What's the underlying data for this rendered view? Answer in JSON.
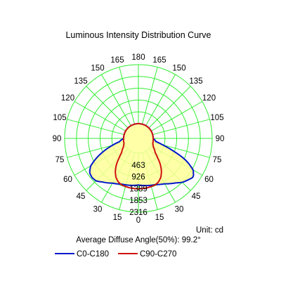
{
  "chart_data": {
    "type": "polar",
    "title": "Luminous Intensity Distribution Curve",
    "angle_labels_left": [
      "0",
      "15",
      "30",
      "45",
      "60",
      "75",
      "90",
      "105",
      "120",
      "135",
      "150",
      "165",
      "180"
    ],
    "angle_labels_right": [
      "15",
      "30",
      "45",
      "60",
      "75",
      "90",
      "105",
      "120",
      "135",
      "150",
      "165"
    ],
    "radial_ticks": [
      463,
      926,
      1389,
      1853,
      2316
    ],
    "radial_labels": [
      "463",
      "926",
      "1389",
      "1853",
      "2316"
    ],
    "rmax": 2316,
    "grid": true,
    "grid_color": "#33ee33",
    "unit_text": "Unit: cd",
    "note": "Average Diffuse Angle(50%): 99.2°",
    "legend_position": "bottom",
    "series": [
      {
        "name": "C0-C180",
        "color": "#0018c8",
        "fill": "#ffff99",
        "angles": [
          0,
          10,
          20,
          30,
          40,
          45,
          50,
          55,
          60,
          65,
          70,
          75,
          80,
          90,
          100,
          180
        ],
        "left_values": [
          1250,
          1290,
          1330,
          1450,
          1650,
          1780,
          1800,
          1760,
          1580,
          1230,
          850,
          480,
          180,
          0,
          0,
          0
        ],
        "right_values": [
          1250,
          1300,
          1350,
          1480,
          1700,
          1860,
          1960,
          2060,
          1900,
          1500,
          900,
          400,
          120,
          0,
          0,
          0
        ]
      },
      {
        "name": "C90-C270",
        "color": "#d01010",
        "fill": "none",
        "angles": [
          0,
          10,
          20,
          25,
          30,
          35,
          40,
          45,
          50,
          60,
          70,
          90,
          180
        ],
        "left_values": [
          1400,
          1390,
          1360,
          1300,
          1180,
          1000,
          760,
          480,
          280,
          100,
          20,
          0,
          0
        ],
        "right_values": [
          1400,
          1390,
          1360,
          1300,
          1180,
          1000,
          760,
          480,
          280,
          100,
          20,
          0,
          0
        ]
      }
    ]
  }
}
